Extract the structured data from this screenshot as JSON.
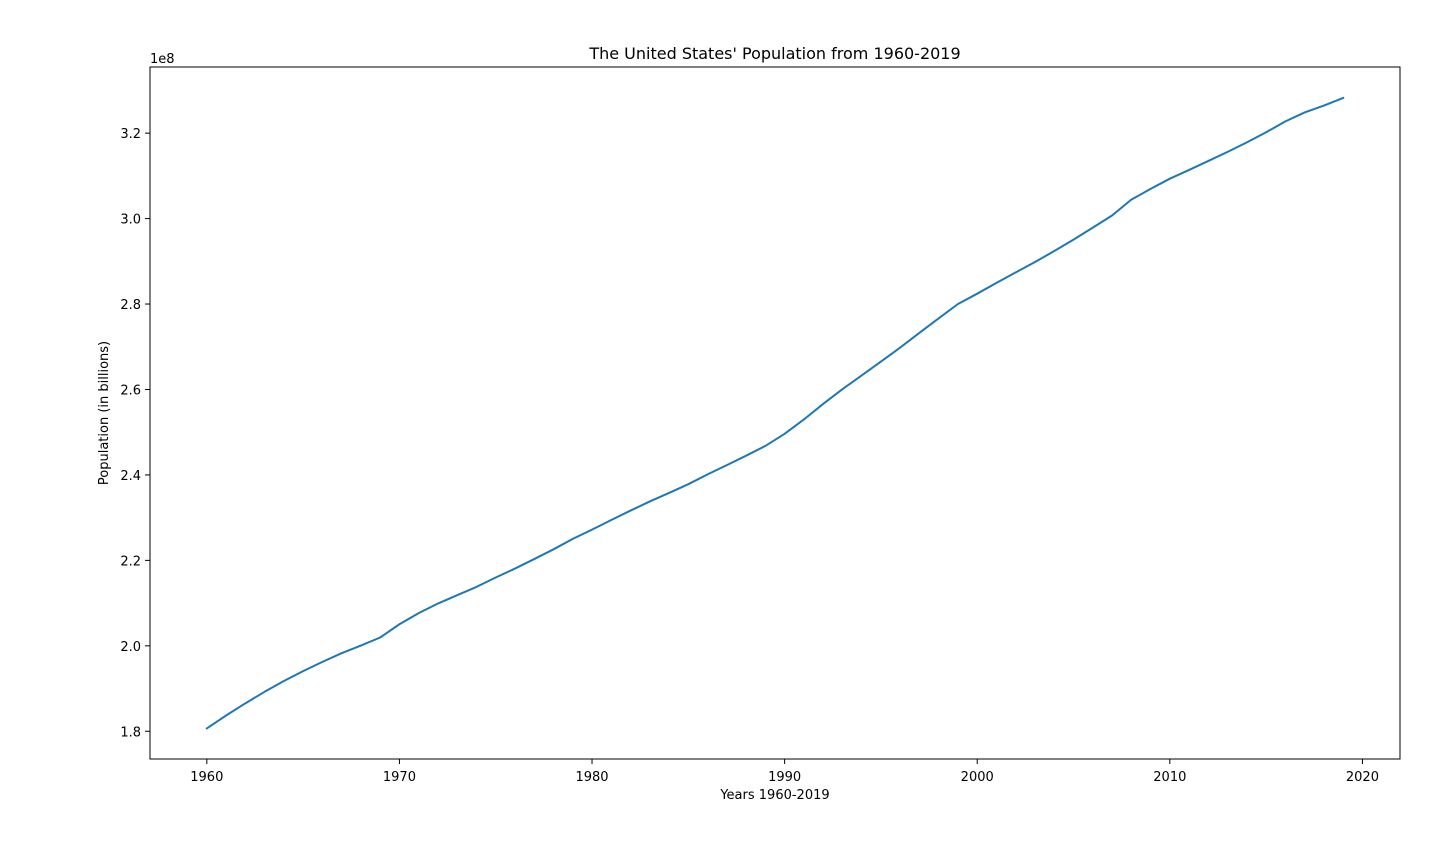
{
  "chart_data": {
    "type": "line",
    "title": "The United States' Population from 1960-2019",
    "xlabel": "Years 1960-2019",
    "ylabel": "Population (in billions)",
    "y_offset_label": "1e8",
    "xlim": [
      1957.05,
      2021.95
    ],
    "ylim": [
      1.7351,
      3.3548
    ],
    "x_ticks": [
      1960,
      1970,
      1980,
      1990,
      2000,
      2010,
      2020
    ],
    "y_ticks": [
      1.8,
      2.0,
      2.2,
      2.4,
      2.6,
      2.8,
      3.0,
      3.2
    ],
    "y_tick_labels": [
      "1.8",
      "2.0",
      "2.2",
      "2.4",
      "2.6",
      "2.8",
      "3.0",
      "3.2"
    ],
    "grid": false,
    "line_color": "#1f77b4",
    "series": [
      {
        "x": [
          1960,
          1961,
          1962,
          1963,
          1964,
          1965,
          1966,
          1967,
          1968,
          1969,
          1970,
          1971,
          1972,
          1973,
          1974,
          1975,
          1976,
          1977,
          1978,
          1979,
          1980,
          1981,
          1982,
          1983,
          1984,
          1985,
          1986,
          1987,
          1988,
          1989,
          1990,
          1991,
          1992,
          1993,
          1994,
          1995,
          1996,
          1997,
          1998,
          1999,
          2000,
          2001,
          2002,
          2003,
          2004,
          2005,
          2006,
          2007,
          2008,
          2009,
          2010,
          2011,
          2012,
          2013,
          2014,
          2015,
          2016,
          2017,
          2018,
          2019
        ],
        "values": [
          1.8067,
          1.8369,
          1.8654,
          1.8924,
          1.9176,
          1.9407,
          1.9624,
          1.9827,
          2.0007,
          2.0195,
          2.0505,
          2.0766,
          2.099,
          2.1186,
          2.1379,
          2.1599,
          2.1809,
          2.2031,
          2.2259,
          2.2503,
          2.2719,
          2.2946,
          2.3166,
          2.3379,
          2.3579,
          2.3783,
          2.4013,
          2.4229,
          2.445,
          2.4679,
          2.4962,
          2.5298,
          2.5661,
          2.6006,
          2.6329,
          2.6652,
          2.6981,
          2.7326,
          2.7665,
          2.8001,
          2.8242,
          2.8496,
          2.874,
          2.8984,
          2.924,
          2.9508,
          2.9788,
          3.0073,
          3.0443,
          3.0694,
          3.0934,
          3.1138,
          3.1349,
          3.1561,
          3.1783,
          3.202,
          3.2275,
          3.2484,
          3.2645,
          3.2824
        ]
      }
    ]
  }
}
